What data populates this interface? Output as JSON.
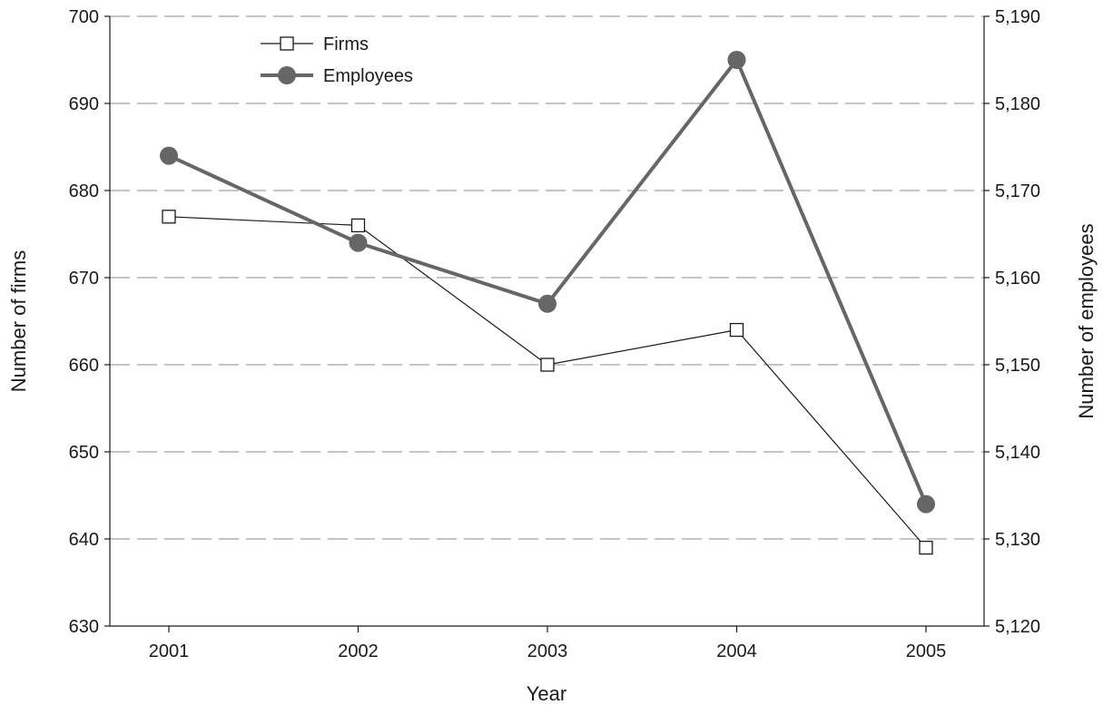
{
  "chart_data": {
    "type": "line",
    "x": [
      "2001",
      "2002",
      "2003",
      "2004",
      "2005"
    ],
    "xlabel": "Year",
    "ylabel": "Number of firms",
    "y2label": "Number of employees",
    "ylim": [
      630,
      700
    ],
    "y2lim": [
      5120,
      5190
    ],
    "yticks": [
      "630",
      "640",
      "650",
      "660",
      "670",
      "680",
      "690",
      "700"
    ],
    "y2ticks": [
      "5,120",
      "5,130",
      "5,140",
      "5,150",
      "5,160",
      "5,170",
      "5,180",
      "5,190"
    ],
    "grid": "horizontal dashed",
    "legend_position": "top-left",
    "series": [
      {
        "name": "Firms",
        "axis": "left",
        "marker": "open-square",
        "color": "#1a1a1a",
        "values": [
          677,
          676,
          660,
          664,
          639
        ]
      },
      {
        "name": "Employees",
        "axis": "right",
        "marker": "filled-circle",
        "color": "#666666",
        "values": [
          5174,
          5164,
          5157,
          5185,
          5134
        ]
      }
    ]
  }
}
